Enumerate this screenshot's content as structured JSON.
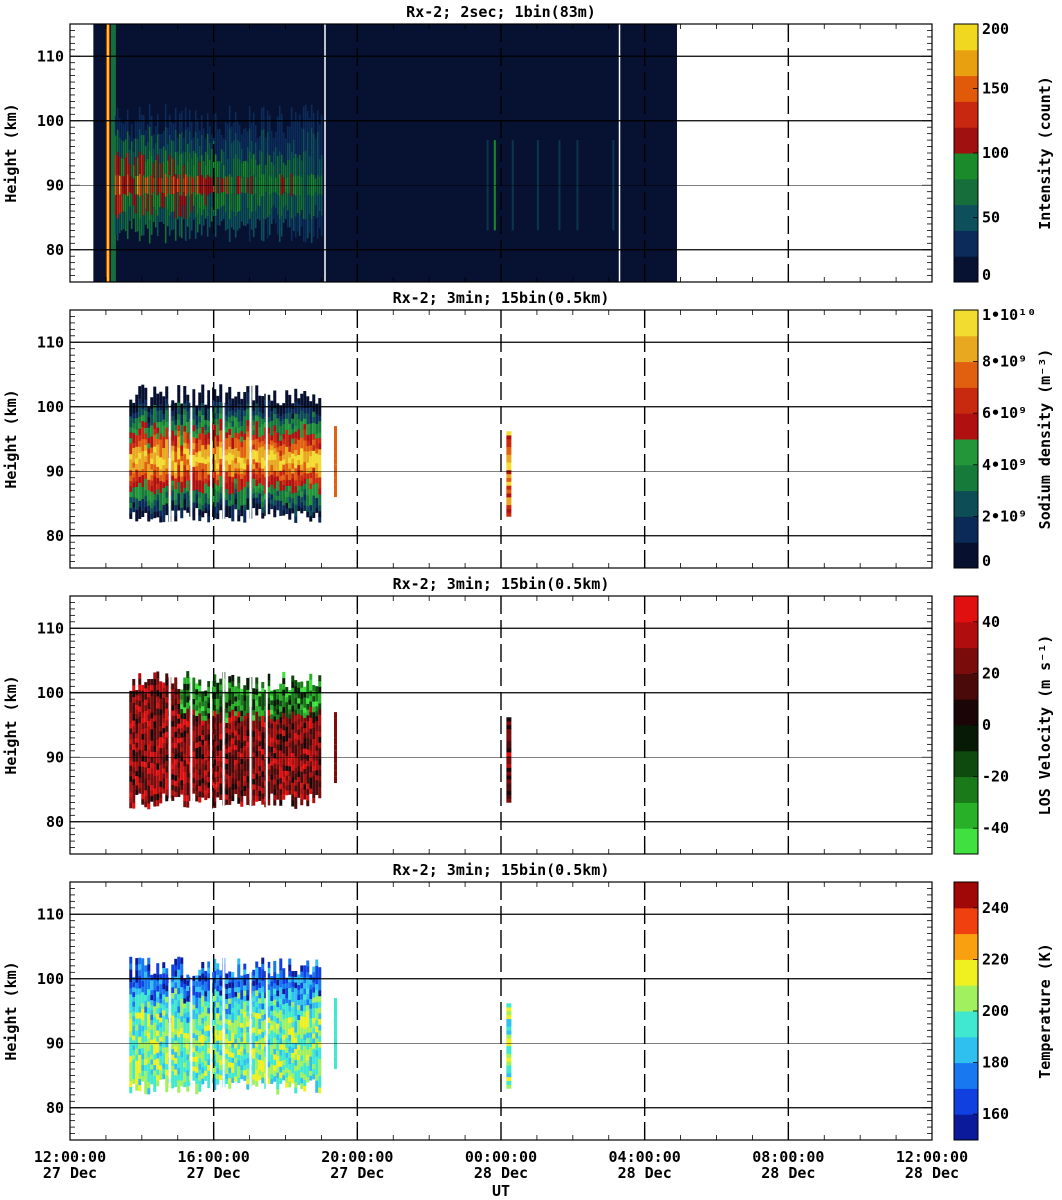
{
  "figure": {
    "xlabel": "UT",
    "x_ticks": [
      {
        "time": "12:00:00",
        "date": "27 Dec"
      },
      {
        "time": "16:00:00",
        "date": "27 Dec"
      },
      {
        "time": "20:00:00",
        "date": "27 Dec"
      },
      {
        "time": "00:00:00",
        "date": "28 Dec"
      },
      {
        "time": "04:00:00",
        "date": "28 Dec"
      },
      {
        "time": "08:00:00",
        "date": "28 Dec"
      },
      {
        "time": "12:00:00",
        "date": "28 Dec"
      }
    ],
    "colors": {
      "panel1": [
        "#071232",
        "#0c2a5a",
        "#0e4f5c",
        "#166f3a",
        "#1a8a2a",
        "#a01010",
        "#c82810",
        "#e05a0a",
        "#e8a010",
        "#f0d820"
      ],
      "panel2": [
        "#081030",
        "#0c2a58",
        "#0d4d55",
        "#167a3a",
        "#23963a",
        "#b01010",
        "#c82a10",
        "#e06010",
        "#e8a820",
        "#f2dc30"
      ],
      "panel3": [
        "#40e040",
        "#28b028",
        "#1a7a1a",
        "#0e4a0e",
        "#061a06",
        "#1a0606",
        "#4a0a0a",
        "#7a0c0c",
        "#b00e0e",
        "#e01010"
      ],
      "panel4": [
        "#0a1a9a",
        "#1040e0",
        "#1878f0",
        "#30c0f0",
        "#40e8d0",
        "#a0f060",
        "#f0f020",
        "#f8a010",
        "#f04010",
        "#a00808"
      ]
    }
  },
  "chart_data": [
    {
      "type": "heatmap",
      "title": "Rx-2;  2sec; 1bin(83m)",
      "ylabel": "Height (km)",
      "ylim": [
        75,
        115
      ],
      "y_ticks": [
        80,
        90,
        100,
        110
      ],
      "xlim_hours": [
        0,
        24
      ],
      "colorbar_label": "Intensity (count)",
      "colorbar_ticks": [
        "0",
        "50",
        "100",
        "150",
        "200"
      ],
      "colorbar_range": [
        0,
        200
      ],
      "data_extent_hours": [
        0.65,
        16.9
      ],
      "layer_center_km": 90,
      "max_value": 200,
      "grid": "horizontal lines at 80, 90, 100, 110 km"
    },
    {
      "type": "heatmap",
      "title": "Rx-2; 3min; 15bin(0.5km)",
      "ylabel": "Height (km)",
      "ylim": [
        75,
        115
      ],
      "y_ticks": [
        80,
        90,
        100,
        110
      ],
      "xlim_hours": [
        0,
        24
      ],
      "colorbar_label": "Sodium density (m⁻³)",
      "colorbar_ticks": [
        "0",
        "2•10⁹",
        "4•10⁹",
        "6•10⁹",
        "8•10⁹",
        "1•10¹⁰"
      ],
      "colorbar_range": [
        0,
        10000000000
      ],
      "data_extent_hours": [
        1.65,
        7.4
      ],
      "layer_km": [
        82,
        104
      ],
      "max_value": 10000000000
    },
    {
      "type": "heatmap",
      "title": "Rx-2; 3min; 15bin(0.5km)",
      "ylabel": "Height (km)",
      "ylim": [
        75,
        115
      ],
      "y_ticks": [
        80,
        90,
        100,
        110
      ],
      "xlim_hours": [
        0,
        24
      ],
      "colorbar_label": "LOS Velocity (m s⁻¹)",
      "colorbar_ticks": [
        "-40",
        "-20",
        "0",
        "20",
        "40"
      ],
      "colorbar_range": [
        -50,
        50
      ],
      "data_extent_hours": [
        1.65,
        7.4
      ],
      "layer_km": [
        82,
        104
      ],
      "max_value": 50
    },
    {
      "type": "heatmap",
      "title": "Rx-2; 3min; 15bin(0.5km)",
      "ylabel": "Height (km)",
      "ylim": [
        75,
        115
      ],
      "y_ticks": [
        80,
        90,
        100,
        110
      ],
      "xlim_hours": [
        0,
        24
      ],
      "xlabel": "UT",
      "colorbar_label": "Temperature (K)",
      "colorbar_ticks": [
        "160",
        "180",
        "200",
        "220",
        "240"
      ],
      "colorbar_range": [
        150,
        250
      ],
      "data_extent_hours": [
        1.65,
        7.4
      ],
      "layer_km": [
        82,
        104
      ],
      "max_value": 250
    }
  ]
}
